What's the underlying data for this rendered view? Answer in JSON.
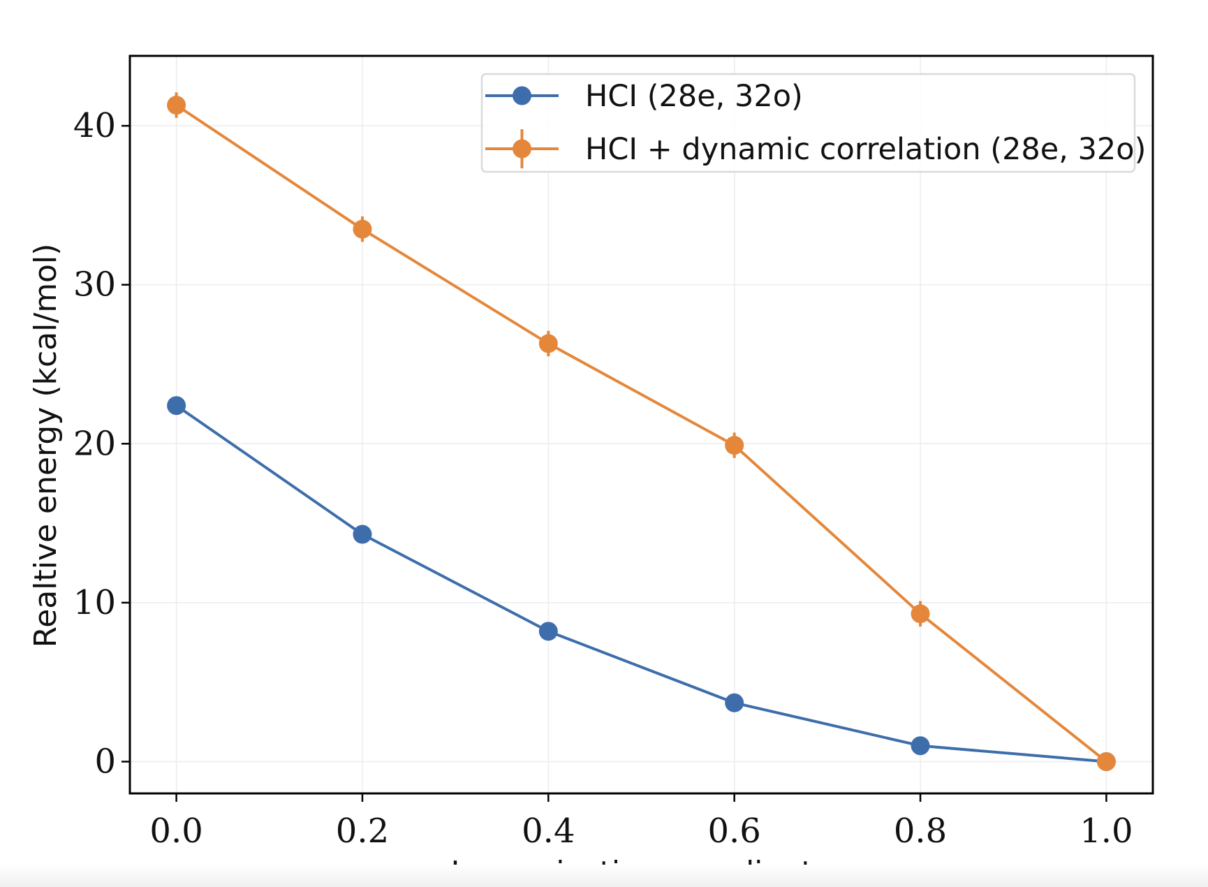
{
  "chart_data": {
    "type": "line",
    "xlabel": "Isomerization coordinate",
    "ylabel": "Realtive energy (kcal/mol)",
    "x": [
      0.0,
      0.2,
      0.4,
      0.6,
      0.8,
      1.0
    ],
    "x_tick_labels": [
      "0.0",
      "0.2",
      "0.4",
      "0.6",
      "0.8",
      "1.0"
    ],
    "y_tick_labels": [
      "0",
      "10",
      "20",
      "30",
      "40"
    ],
    "y_ticks": [
      0,
      10,
      20,
      30,
      40
    ],
    "xlim": [
      -0.05,
      1.05
    ],
    "ylim": [
      -2,
      44.4
    ],
    "grid": true,
    "legend_position": "top-right",
    "series": [
      {
        "name": "HCI (28e, 32o)",
        "color": "#3d6eab",
        "values": [
          22.4,
          14.3,
          8.2,
          3.7,
          1.0,
          0.0
        ],
        "errors": [
          0,
          0,
          0,
          0,
          0,
          0
        ]
      },
      {
        "name": "HCI + dynamic correlation (28e, 32o)",
        "color": "#e4873a",
        "values": [
          41.3,
          33.5,
          26.3,
          19.9,
          9.3,
          0.0
        ],
        "errors": [
          0.8,
          0.8,
          0.8,
          0.8,
          0.8,
          0.0
        ]
      }
    ]
  }
}
